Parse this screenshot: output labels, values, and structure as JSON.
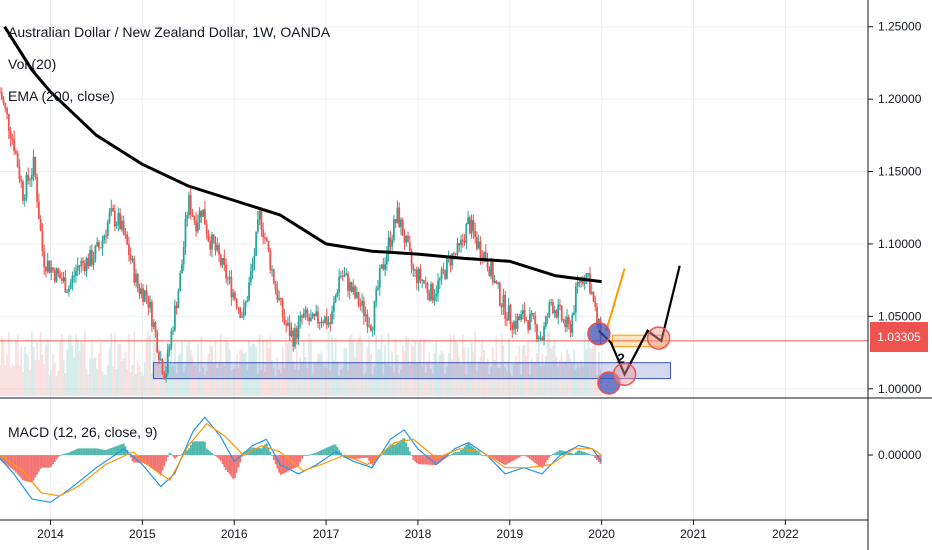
{
  "header": {
    "title": "Australian Dollar / New Zealand Dollar, 1W, OANDA",
    "vol_label": "Vol (20)",
    "ema_label": "EMA (200, close)",
    "macd_label": "MACD (12, 26, close, 9)"
  },
  "annotations": {
    "wave_label": "2"
  },
  "colors": {
    "up": "#26a69a",
    "down": "#ef5350",
    "ema": "#000000",
    "zone": "#3f51b5",
    "macd_line": "#2196f3",
    "signal_line": "#ff9800",
    "projection": "#000000",
    "projection_alt": "#ff9800"
  },
  "chart_data": {
    "type": "line",
    "title": "Australian Dollar / New Zealand Dollar, 1W, OANDA",
    "price_axis": {
      "ticks": [
        1.25,
        1.2,
        1.15,
        1.1,
        1.05,
        1.0
      ],
      "tick_labels": [
        "1.25000",
        "1.20000",
        "1.15000",
        "1.10000",
        "1.05000",
        "1.00000"
      ],
      "ylim": [
        0.995,
        1.265
      ]
    },
    "time_axis": {
      "ticks": [
        2014,
        2015,
        2016,
        2017,
        2018,
        2019,
        2020,
        2021,
        2022
      ],
      "tick_labels": [
        "2014",
        "2015",
        "2016",
        "2017",
        "2018",
        "2019",
        "2020",
        "2021",
        "2022"
      ],
      "xlim": [
        2013.45,
        2022.9
      ]
    },
    "last_price": "1.03305",
    "last_price_value": 1.03305,
    "macd_axis": {
      "ticks": [
        0
      ],
      "tick_labels": [
        "0.00000"
      ],
      "ylim": [
        -0.04,
        0.035
      ]
    },
    "price_path": [
      [
        2013.45,
        1.205
      ],
      [
        2013.6,
        1.17
      ],
      [
        2013.7,
        1.135
      ],
      [
        2013.82,
        1.155
      ],
      [
        2013.92,
        1.09
      ],
      [
        2014.05,
        1.08
      ],
      [
        2014.2,
        1.07
      ],
      [
        2014.3,
        1.085
      ],
      [
        2014.45,
        1.09
      ],
      [
        2014.55,
        1.1
      ],
      [
        2014.65,
        1.12
      ],
      [
        2014.75,
        1.115
      ],
      [
        2014.85,
        1.095
      ],
      [
        2014.95,
        1.07
      ],
      [
        2015.05,
        1.065
      ],
      [
        2015.12,
        1.045
      ],
      [
        2015.2,
        1.02
      ],
      [
        2015.25,
        1.01
      ],
      [
        2015.32,
        1.04
      ],
      [
        2015.42,
        1.08
      ],
      [
        2015.5,
        1.13
      ],
      [
        2015.58,
        1.115
      ],
      [
        2015.65,
        1.125
      ],
      [
        2015.72,
        1.105
      ],
      [
        2015.8,
        1.095
      ],
      [
        2015.9,
        1.08
      ],
      [
        2016.0,
        1.065
      ],
      [
        2016.1,
        1.05
      ],
      [
        2016.2,
        1.085
      ],
      [
        2016.28,
        1.12
      ],
      [
        2016.35,
        1.1
      ],
      [
        2016.45,
        1.07
      ],
      [
        2016.55,
        1.045
      ],
      [
        2016.65,
        1.035
      ],
      [
        2016.75,
        1.05
      ],
      [
        2016.85,
        1.045
      ],
      [
        2016.95,
        1.05
      ],
      [
        2017.05,
        1.045
      ],
      [
        2017.15,
        1.08
      ],
      [
        2017.22,
        1.075
      ],
      [
        2017.3,
        1.065
      ],
      [
        2017.4,
        1.055
      ],
      [
        2017.5,
        1.045
      ],
      [
        2017.58,
        1.075
      ],
      [
        2017.68,
        1.1
      ],
      [
        2017.78,
        1.12
      ],
      [
        2017.85,
        1.105
      ],
      [
        2017.95,
        1.08
      ],
      [
        2018.05,
        1.075
      ],
      [
        2018.15,
        1.065
      ],
      [
        2018.25,
        1.075
      ],
      [
        2018.35,
        1.09
      ],
      [
        2018.45,
        1.095
      ],
      [
        2018.55,
        1.115
      ],
      [
        2018.65,
        1.1
      ],
      [
        2018.75,
        1.09
      ],
      [
        2018.85,
        1.07
      ],
      [
        2018.95,
        1.055
      ],
      [
        2019.05,
        1.045
      ],
      [
        2019.15,
        1.05
      ],
      [
        2019.25,
        1.045
      ],
      [
        2019.35,
        1.035
      ],
      [
        2019.45,
        1.06
      ],
      [
        2019.55,
        1.05
      ],
      [
        2019.65,
        1.04
      ],
      [
        2019.75,
        1.075
      ],
      [
        2019.85,
        1.08
      ],
      [
        2019.95,
        1.045
      ],
      [
        2020.0,
        1.036
      ]
    ],
    "ema_path": [
      [
        2013.5,
        1.25
      ],
      [
        2013.8,
        1.22
      ],
      [
        2014.0,
        1.205
      ],
      [
        2014.5,
        1.175
      ],
      [
        2015.0,
        1.155
      ],
      [
        2015.5,
        1.14
      ],
      [
        2016.0,
        1.13
      ],
      [
        2016.5,
        1.12
      ],
      [
        2017.0,
        1.1
      ],
      [
        2017.5,
        1.095
      ],
      [
        2018.0,
        1.093
      ],
      [
        2018.5,
        1.09
      ],
      [
        2019.0,
        1.088
      ],
      [
        2019.5,
        1.078
      ],
      [
        2019.75,
        1.076
      ],
      [
        2020.0,
        1.074
      ]
    ],
    "support_zone": {
      "x": [
        2015.12,
        2020.75
      ],
      "y": [
        1.007,
        1.018
      ]
    },
    "projection_main": [
      [
        2019.97,
        1.04
      ],
      [
        2020.1,
        1.032
      ],
      [
        2020.25,
        1.01
      ],
      [
        2020.5,
        1.04
      ],
      [
        2020.65,
        1.033
      ],
      [
        2020.85,
        1.085
      ]
    ],
    "projection_alt": [
      [
        2020.05,
        1.04
      ],
      [
        2020.25,
        1.083
      ]
    ],
    "target_box": {
      "x": [
        2020.12,
        2020.7
      ],
      "y": [
        1.029,
        1.037
      ]
    },
    "macd_points": [
      [
        2013.45,
        -0.002
      ],
      [
        2013.6,
        -0.012
      ],
      [
        2013.8,
        -0.028
      ],
      [
        2014.0,
        -0.03
      ],
      [
        2014.2,
        -0.022
      ],
      [
        2014.5,
        -0.008
      ],
      [
        2014.8,
        0.004
      ],
      [
        2015.0,
        -0.006
      ],
      [
        2015.2,
        -0.02
      ],
      [
        2015.35,
        -0.012
      ],
      [
        2015.55,
        0.015
      ],
      [
        2015.68,
        0.024
      ],
      [
        2015.85,
        0.012
      ],
      [
        2016.0,
        -0.004
      ],
      [
        2016.2,
        0.006
      ],
      [
        2016.35,
        0.01
      ],
      [
        2016.5,
        -0.006
      ],
      [
        2016.7,
        -0.012
      ],
      [
        2016.9,
        -0.006
      ],
      [
        2017.1,
        0.002
      ],
      [
        2017.3,
        -0.004
      ],
      [
        2017.5,
        -0.008
      ],
      [
        2017.7,
        0.01
      ],
      [
        2017.85,
        0.016
      ],
      [
        2018.0,
        0.004
      ],
      [
        2018.2,
        -0.006
      ],
      [
        2018.4,
        0.004
      ],
      [
        2018.55,
        0.008
      ],
      [
        2018.75,
        0.0
      ],
      [
        2018.95,
        -0.012
      ],
      [
        2019.15,
        -0.008
      ],
      [
        2019.35,
        -0.012
      ],
      [
        2019.55,
        0.0
      ],
      [
        2019.75,
        0.006
      ],
      [
        2019.9,
        0.004
      ],
      [
        2020.0,
        -0.004
      ]
    ],
    "signal_points": [
      [
        2013.45,
        0.0
      ],
      [
        2013.7,
        -0.01
      ],
      [
        2013.9,
        -0.024
      ],
      [
        2014.1,
        -0.026
      ],
      [
        2014.3,
        -0.02
      ],
      [
        2014.6,
        -0.006
      ],
      [
        2014.9,
        0.002
      ],
      [
        2015.1,
        -0.008
      ],
      [
        2015.3,
        -0.016
      ],
      [
        2015.5,
        0.006
      ],
      [
        2015.7,
        0.02
      ],
      [
        2015.9,
        0.012
      ],
      [
        2016.1,
        0.0
      ],
      [
        2016.3,
        0.006
      ],
      [
        2016.5,
        0.002
      ],
      [
        2016.75,
        -0.01
      ],
      [
        2016.95,
        -0.006
      ],
      [
        2017.2,
        0.0
      ],
      [
        2017.45,
        -0.006
      ],
      [
        2017.75,
        0.008
      ],
      [
        2017.95,
        0.01
      ],
      [
        2018.2,
        -0.002
      ],
      [
        2018.45,
        0.004
      ],
      [
        2018.7,
        0.002
      ],
      [
        2018.95,
        -0.008
      ],
      [
        2019.2,
        -0.008
      ],
      [
        2019.45,
        -0.006
      ],
      [
        2019.7,
        0.004
      ],
      [
        2019.9,
        0.004
      ],
      [
        2020.0,
        0.0
      ]
    ]
  }
}
